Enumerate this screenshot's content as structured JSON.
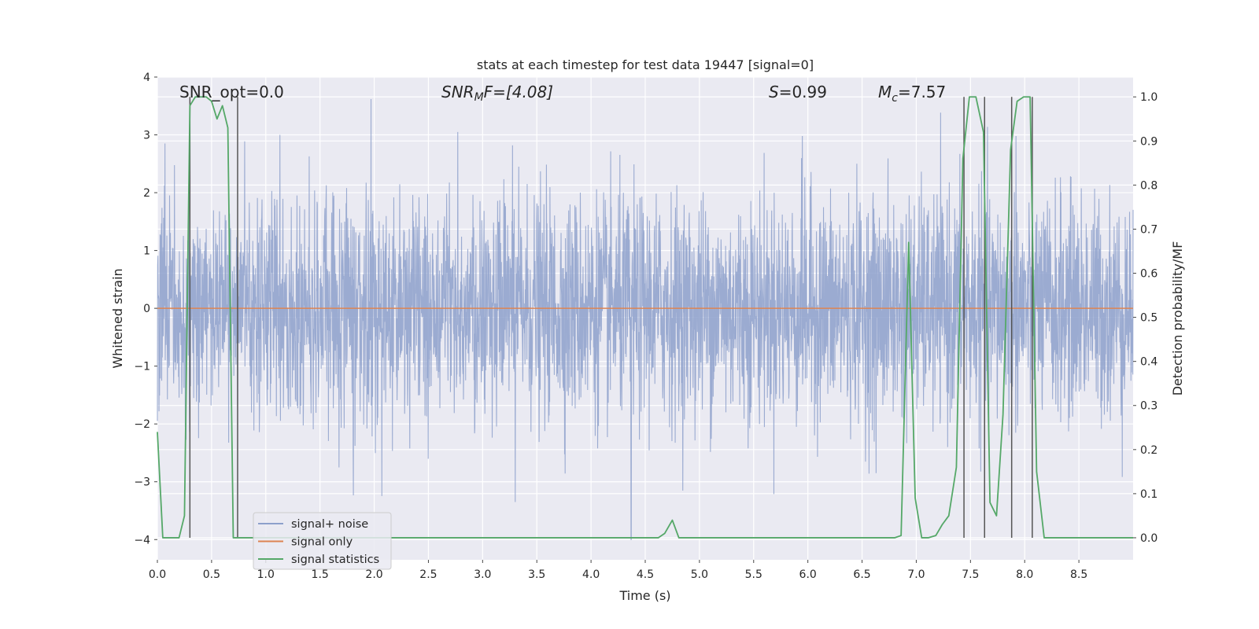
{
  "chart_data": {
    "type": "line",
    "title": "stats at each timestep for test data 19447 [signal=0]",
    "xlabel": "Time (s)",
    "ylabel": "Whitened strain",
    "ylabel_right": "Detection probability/MF",
    "xlim": [
      0.0,
      9.0
    ],
    "ylim": [
      -4.35,
      4.0
    ],
    "ylim_right": [
      -0.05,
      1.045
    ],
    "xticks": [
      0.0,
      0.5,
      1.0,
      1.5,
      2.0,
      2.5,
      3.0,
      3.5,
      4.0,
      4.5,
      5.0,
      5.5,
      6.0,
      6.5,
      7.0,
      7.5,
      8.0,
      8.5
    ],
    "xtick_labels": [
      "0.0",
      "0.5",
      "1.0",
      "1.5",
      "2.0",
      "2.5",
      "3.0",
      "3.5",
      "4.0",
      "4.5",
      "5.0",
      "5.5",
      "6.0",
      "6.5",
      "7.0",
      "7.5",
      "8.0",
      "8.5"
    ],
    "yticks": [
      4,
      3,
      2,
      1,
      0,
      -1,
      -2,
      -3,
      -4
    ],
    "ytick_labels": [
      "4",
      "3",
      "2",
      "1",
      "0",
      "−1",
      "−2",
      "−3",
      "−4"
    ],
    "yticks_right": [
      1.0,
      0.9,
      0.8,
      0.7,
      0.6,
      0.5,
      0.4,
      0.3,
      0.2,
      0.1,
      0.0
    ],
    "ytick_labels_right": [
      "1.0",
      "0.9",
      "0.8",
      "0.7",
      "0.6",
      "0.5",
      "0.4",
      "0.3",
      "0.2",
      "0.1",
      "0.0"
    ],
    "annotations": {
      "snr_opt": "SNR_opt=0.0",
      "snr_mf_sym": "SNR",
      "snr_mf_sub": "M",
      "snr_mf_rest": "F=[4.08]",
      "s_sym": "S",
      "s_val": "=0.99",
      "mc_sym": "M",
      "mc_sub": "c",
      "mc_val": "=7.57"
    },
    "series": [
      {
        "name": "signal+ noise",
        "color": "#8da0cb",
        "description": "whitened strain noise, gaussian-like, sampled densely over 0-9 s",
        "peaks": [
          {
            "x": 1.97,
            "y": 3.62
          },
          {
            "x": 0.07,
            "y": 2.85
          },
          {
            "x": 1.13,
            "y": 3.0
          },
          {
            "x": 3.3,
            "y": -3.35
          },
          {
            "x": 4.37,
            "y": -4.0
          },
          {
            "x": 6.63,
            "y": -2.85
          },
          {
            "x": 5.95,
            "y": 2.98
          },
          {
            "x": 7.92,
            "y": 2.98
          },
          {
            "x": 2.77,
            "y": 3.05
          }
        ]
      },
      {
        "name": "signal only",
        "color": "#dd8452",
        "x": [
          0.0,
          9.0
        ],
        "values": [
          0.0,
          0.0
        ]
      },
      {
        "name": "signal statistics",
        "color": "#55a868",
        "axis": "right",
        "x": [
          0.0,
          0.05,
          0.1,
          0.15,
          0.2,
          0.25,
          0.3,
          0.35,
          0.4,
          0.45,
          0.5,
          0.55,
          0.6,
          0.65,
          0.7,
          0.75,
          0.8,
          0.85,
          0.9,
          0.95,
          4.55,
          4.62,
          4.68,
          4.75,
          4.81,
          4.9,
          5.0,
          5.5,
          6.8,
          6.86,
          6.93,
          6.99,
          7.05,
          7.11,
          7.18,
          7.24,
          7.3,
          7.37,
          7.43,
          7.49,
          7.55,
          7.62,
          7.68,
          7.74,
          7.8,
          7.87,
          7.93,
          7.99,
          8.05,
          8.11,
          8.18,
          8.3,
          9.0
        ],
        "values": [
          0.24,
          0.0,
          0.0,
          0.0,
          0.0,
          0.05,
          0.98,
          1.0,
          1.0,
          1.0,
          0.99,
          0.95,
          0.98,
          0.93,
          0.0,
          0.0,
          0.0,
          0.0,
          0.0,
          0.0,
          0.0,
          0.0,
          0.01,
          0.04,
          0.0,
          0.0,
          0.0,
          0.0,
          0.0,
          0.005,
          0.67,
          0.09,
          0.0,
          0.0,
          0.005,
          0.03,
          0.05,
          0.16,
          0.86,
          1.0,
          1.0,
          0.92,
          0.08,
          0.05,
          0.28,
          0.88,
          0.99,
          1.0,
          1.0,
          0.15,
          0.0,
          0.0,
          0.0
        ]
      }
    ],
    "vlines": [
      0.3,
      0.74,
      7.44,
      7.63,
      7.88,
      8.07
    ],
    "vline_range": [
      0.0,
      1.0
    ],
    "vline_color": "#555555",
    "legend": {
      "placement": "lower-left",
      "entries": [
        {
          "label": "signal+ noise",
          "color": "#8da0cb"
        },
        {
          "label": "signal only",
          "color": "#dd8452"
        },
        {
          "label": "signal statistics",
          "color": "#55a868"
        }
      ]
    },
    "grid": true,
    "grid_color": "#ffffff",
    "background_color": "#eaeaf2"
  }
}
